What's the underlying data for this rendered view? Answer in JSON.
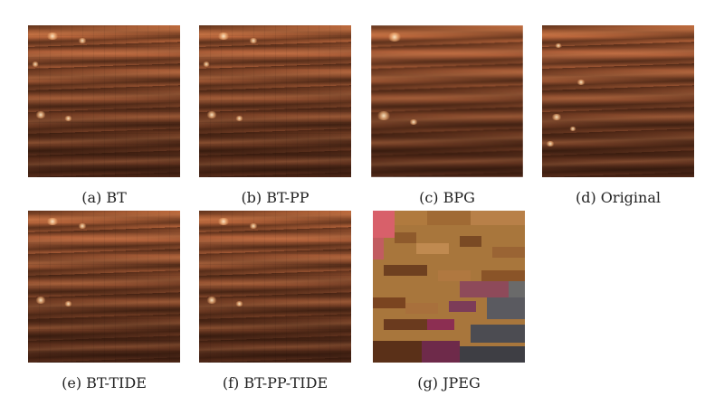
{
  "figure": {
    "panels": [
      {
        "id": "a",
        "caption": "(a) BT",
        "style": "blocky"
      },
      {
        "id": "b",
        "caption": "(b) BT-PP",
        "style": "blocky"
      },
      {
        "id": "c",
        "caption": "(c) BPG",
        "style": "smooth"
      },
      {
        "id": "d",
        "caption": "(d) Original",
        "style": "original"
      },
      {
        "id": "e",
        "caption": "(e) BT-TIDE",
        "style": "blocky"
      },
      {
        "id": "f",
        "caption": "(f) BT-PP-TIDE",
        "style": "blocky"
      },
      {
        "id": "g",
        "caption": "(g) JPEG",
        "style": "jpeg"
      }
    ]
  }
}
